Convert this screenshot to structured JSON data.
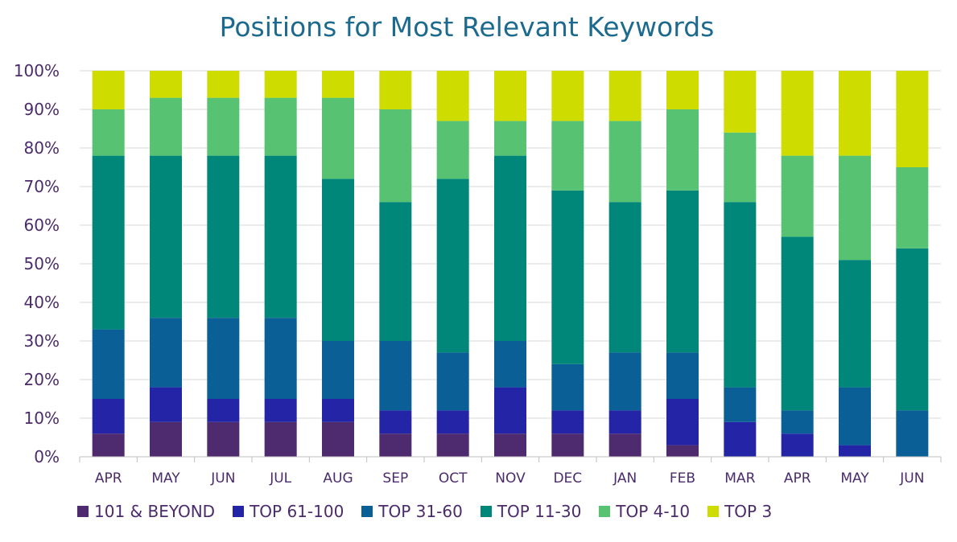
{
  "chart_data": {
    "type": "bar",
    "stacked": true,
    "percent": true,
    "title": "Positions for Most Relevant Keywords",
    "categories": [
      "APR",
      "MAY",
      "JUN",
      "JUL",
      "AUG",
      "SEP",
      "OCT",
      "NOV",
      "DEC",
      "JAN",
      "FEB",
      "MAR",
      "APR",
      "MAY",
      "JUN"
    ],
    "ylim": [
      0,
      100
    ],
    "y_ticks": [
      "0%",
      "10%",
      "20%",
      "30%",
      "40%",
      "50%",
      "60%",
      "70%",
      "80%",
      "90%",
      "100%"
    ],
    "grid": true,
    "legend_position": "bottom",
    "series": [
      {
        "name": "101 & BEYOND",
        "color": "#4e2a6e",
        "values": [
          6,
          9,
          9,
          9,
          9,
          6,
          6,
          6,
          6,
          6,
          3,
          0,
          0,
          0,
          0
        ]
      },
      {
        "name": "TOP 61-100",
        "color": "#2424a6",
        "values": [
          9,
          9,
          6,
          6,
          6,
          6,
          6,
          12,
          6,
          6,
          12,
          9,
          6,
          3,
          0
        ]
      },
      {
        "name": "TOP 31-60",
        "color": "#0a5f96",
        "values": [
          18,
          18,
          21,
          21,
          15,
          18,
          15,
          12,
          12,
          15,
          12,
          9,
          6,
          15,
          12
        ]
      },
      {
        "name": "TOP 11-30",
        "color": "#00877a",
        "values": [
          45,
          42,
          42,
          42,
          42,
          36,
          45,
          48,
          45,
          39,
          42,
          48,
          45,
          33,
          42
        ]
      },
      {
        "name": "TOP 4-10",
        "color": "#56c272",
        "values": [
          12,
          15,
          15,
          15,
          21,
          24,
          15,
          9,
          18,
          21,
          21,
          18,
          21,
          27,
          21
        ]
      },
      {
        "name": "TOP 3",
        "color": "#cfdc00",
        "values": [
          10,
          7,
          7,
          7,
          7,
          10,
          13,
          13,
          13,
          13,
          10,
          16,
          22,
          22,
          25
        ]
      }
    ]
  }
}
